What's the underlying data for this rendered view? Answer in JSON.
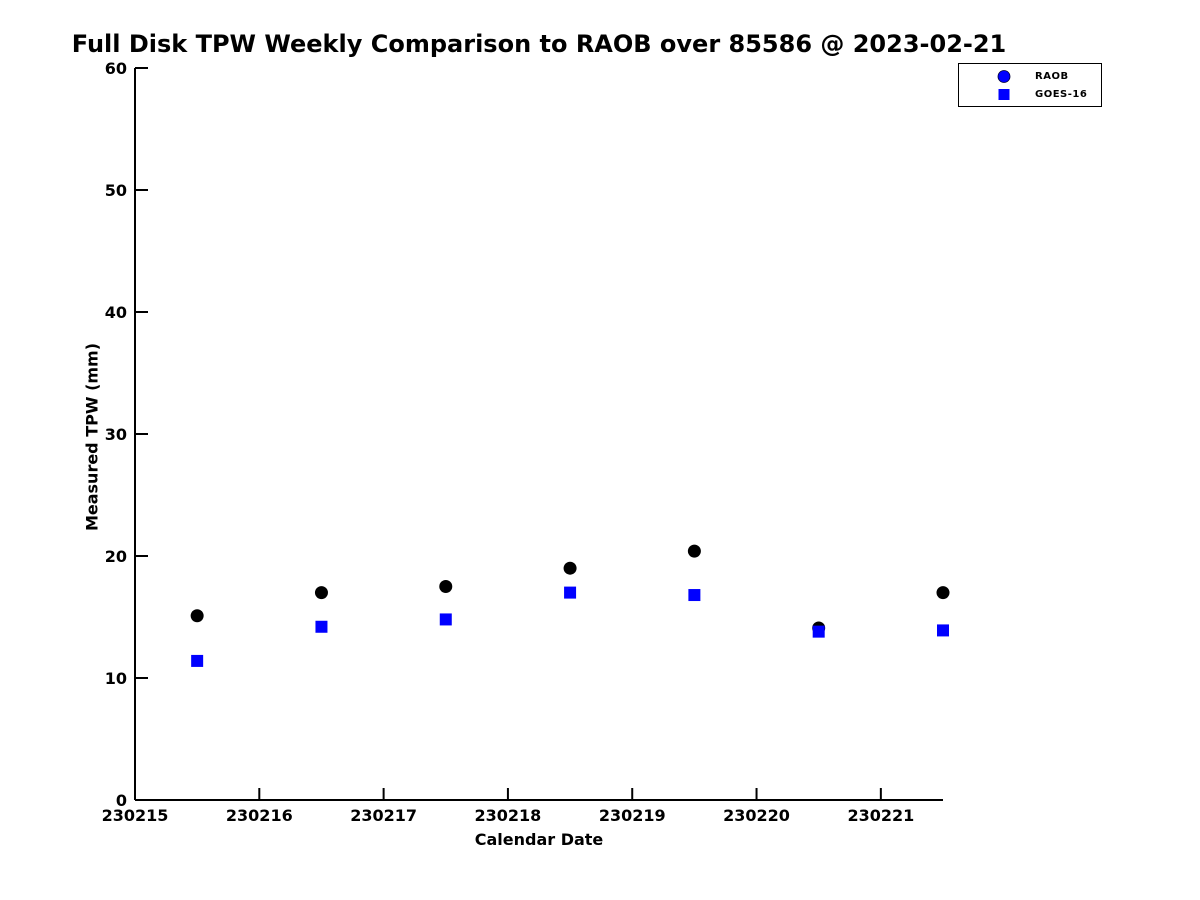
{
  "chart_data": {
    "type": "scatter",
    "title": "Full Disk TPW Weekly Comparison to RAOB over 85586 @ 2023-02-21",
    "xlabel": "Calendar Date",
    "ylabel": "Measured TPW (mm)",
    "xlim": [
      230215,
      230221.5
    ],
    "ylim": [
      0,
      60
    ],
    "xticks": [
      230215,
      230216,
      230217,
      230218,
      230219,
      230220,
      230221
    ],
    "yticks": [
      0,
      10,
      20,
      30,
      40,
      50,
      60
    ],
    "grid": false,
    "legend_position": "top-right",
    "background_color": "#ffffff",
    "axis_color": "#000000",
    "x": [
      230215.5,
      230216.5,
      230217.5,
      230218.5,
      230219.5,
      230220.5,
      230221.5
    ],
    "series": [
      {
        "name": "RAOB",
        "marker": "circle",
        "plot_color": "#000000",
        "legend_color": "#0000ff",
        "values": [
          15.1,
          17.0,
          17.5,
          19.0,
          20.4,
          14.1,
          17.0
        ]
      },
      {
        "name": "GOES-16",
        "marker": "square",
        "plot_color": "#0000ff",
        "legend_color": "#0000ff",
        "values": [
          11.4,
          14.2,
          14.8,
          17.0,
          16.8,
          13.8,
          13.9
        ]
      }
    ]
  }
}
